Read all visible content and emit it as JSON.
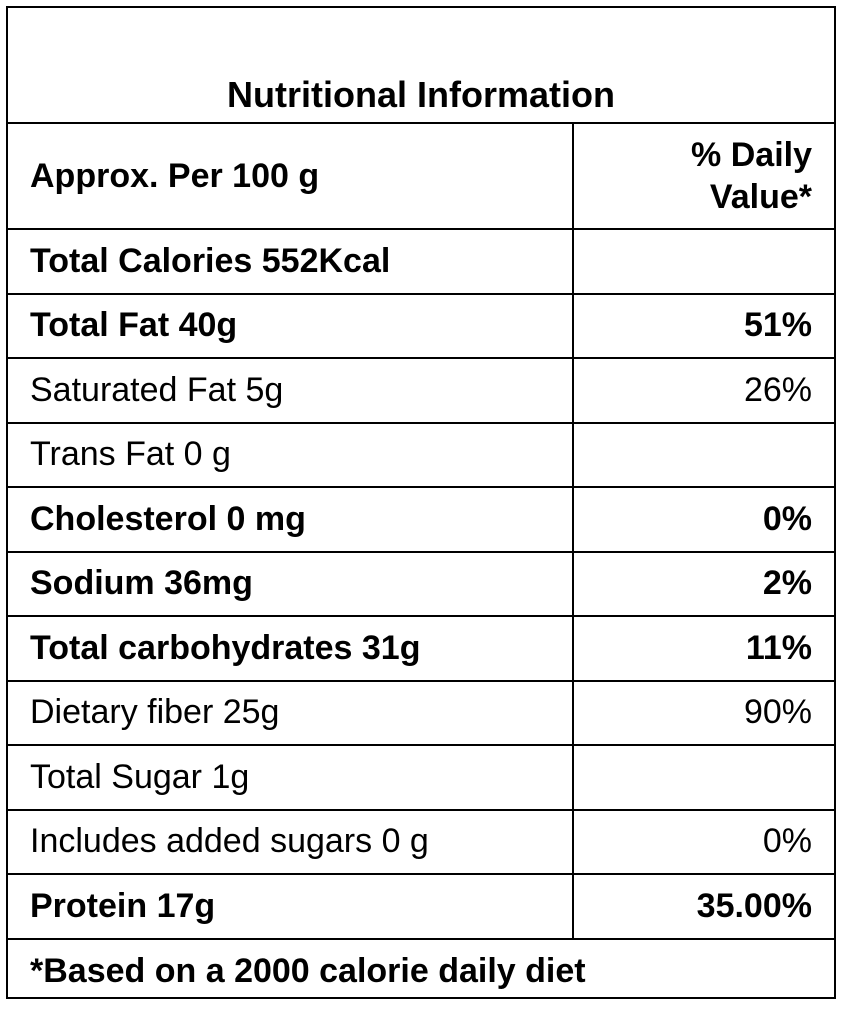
{
  "title": "Nutritional Information",
  "header": {
    "serving": "Approx. Per 100 g",
    "dv_label": "% Daily Value*"
  },
  "rows": [
    {
      "label": "Total Calories 552Kcal",
      "dv": "",
      "bold": true
    },
    {
      "label": "Total Fat 40g",
      "dv": "51%",
      "bold": true
    },
    {
      "label": "Saturated Fat  5g",
      "dv": "26%",
      "bold": false
    },
    {
      "label": "Trans Fat 0 g",
      "dv": "",
      "bold": false
    },
    {
      "label": "Cholesterol 0 mg",
      "dv": "0%",
      "bold": true
    },
    {
      "label": "Sodium 36mg",
      "dv": "2%",
      "bold": true
    },
    {
      "label": "Total carbohydrates  31g",
      "dv": "11%",
      "bold": true
    },
    {
      "label": "Dietary fiber  25g",
      "dv": "90%",
      "bold": false
    },
    {
      "label": "Total Sugar 1g",
      "dv": "",
      "bold": false
    },
    {
      "label": "Includes added sugars 0 g",
      "dv": "0%",
      "bold": false
    },
    {
      "label": "Protein  17g",
      "dv": "35.00%",
      "bold": true
    }
  ],
  "footnote": "*Based on a 2000 calorie daily diet"
}
